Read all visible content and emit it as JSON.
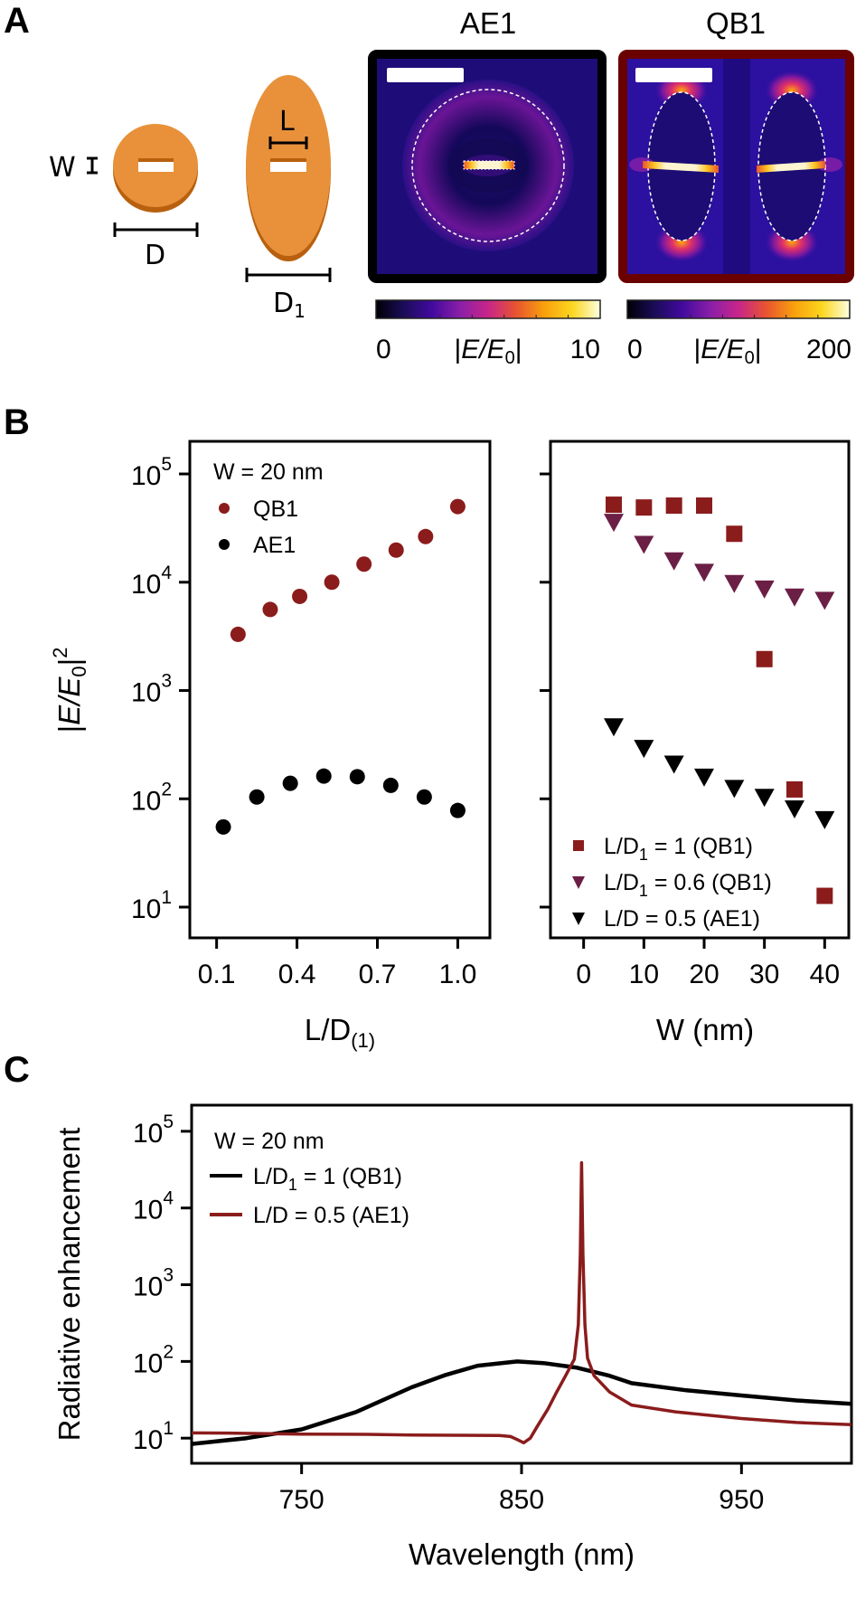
{
  "panels": {
    "a": "A",
    "b": "B",
    "c": "C"
  },
  "schematic": {
    "disk_color": "#e8913a",
    "disk_edge_color": "#b8600e",
    "labels": {
      "w": "W",
      "d": "D",
      "l": "L",
      "d1_main": "D",
      "d1_sub": "1"
    }
  },
  "field_maps": [
    {
      "title": "AE1",
      "frame_color": "#000000",
      "colorbar": {
        "min": "0",
        "label_pre": "|",
        "label_it": "E/E",
        "label_sub": "0",
        "label_post": "|",
        "max": "10"
      }
    },
    {
      "title": "QB1",
      "frame_color": "#6a0000",
      "colorbar": {
        "min": "0",
        "label_pre": "|",
        "label_it": "E/E",
        "label_sub": "0",
        "label_post": "|",
        "max": "200"
      }
    }
  ],
  "colormap": [
    "#000004",
    "#1b0c5a",
    "#420a9e",
    "#8a1fa8",
    "#c8258a",
    "#e85430",
    "#f9a00c",
    "#fcd61f",
    "#fcffe0"
  ],
  "chart_data": [
    {
      "type": "scatter",
      "xlabel": {
        "main": "L/D",
        "sub": "(1)"
      },
      "ylabel": {
        "pre": "|",
        "it": "E/E",
        "sub": "0",
        "post": "|",
        "sup": "2"
      },
      "yscale": "log",
      "ylim": [
        5.2,
        200000
      ],
      "xlim": [
        0.0,
        1.12
      ],
      "xticks": [
        0.1,
        0.4,
        0.7,
        1.0
      ],
      "xticklabels": [
        "0.1",
        "0.4",
        "0.7",
        "1.0"
      ],
      "yticks": [
        10,
        100,
        1000,
        10000,
        100000
      ],
      "yticklabels": [
        {
          "base": "10",
          "exp": "1"
        },
        {
          "base": "10",
          "exp": "2"
        },
        {
          "base": "10",
          "exp": "3"
        },
        {
          "base": "10",
          "exp": "4"
        },
        {
          "base": "10",
          "exp": "5"
        }
      ],
      "legend_title": "W = 20 nm",
      "legend_position": "top-left",
      "series": [
        {
          "name": "QB1",
          "marker": "circle",
          "color": "#8b1c1c",
          "x": [
            0.18,
            0.3,
            0.41,
            0.53,
            0.65,
            0.77,
            0.88,
            1.0
          ],
          "y": [
            3300,
            5600,
            7400,
            10000,
            14700,
            19800,
            26400,
            50000
          ]
        },
        {
          "name": "AE1",
          "marker": "circle",
          "color": "#000000",
          "x": [
            0.125,
            0.25,
            0.375,
            0.5,
            0.625,
            0.75,
            0.875,
            1.0
          ],
          "y": [
            55,
            104,
            139,
            162,
            160,
            133,
            104,
            78
          ]
        }
      ]
    },
    {
      "type": "scatter",
      "xlabel": {
        "main": "W (nm)"
      },
      "yscale": "log",
      "ylim": [
        5.2,
        200000
      ],
      "xlim": [
        -5.5,
        44
      ],
      "xticks": [
        0,
        10,
        20,
        30,
        40
      ],
      "xticklabels": [
        "0",
        "10",
        "20",
        "30",
        "40"
      ],
      "yticks": [
        10,
        100,
        1000,
        10000,
        100000
      ],
      "legend_position": "bottom-left",
      "series": [
        {
          "name": {
            "main": "L/D",
            "sub": "1",
            "rest": " = 1 (QB1)"
          },
          "marker": "square",
          "color": "#8b1c1c",
          "x": [
            5,
            10,
            15,
            20,
            25,
            30,
            35,
            40
          ],
          "y": [
            52000,
            49000,
            51000,
            51000,
            28000,
            1950,
            122,
            12.7
          ]
        },
        {
          "name": {
            "main": "L/D",
            "sub": "1",
            "rest": " = 0.6 (QB1)"
          },
          "marker": "triangle-down",
          "color": "#6b1f45",
          "x": [
            5,
            10,
            15,
            20,
            25,
            30,
            35,
            40
          ],
          "y": [
            36700,
            23000,
            16200,
            12700,
            10000,
            8900,
            7500,
            7000
          ]
        },
        {
          "name": {
            "main": "L/D",
            "sub": "",
            "rest": " = 0.5 (AE1)"
          },
          "marker": "triangle-down",
          "color": "#000000",
          "x": [
            5,
            10,
            15,
            20,
            25,
            30,
            35,
            40
          ],
          "y": [
            475,
            300,
            215,
            163,
            128,
            106,
            83,
            66
          ]
        }
      ]
    },
    {
      "type": "line",
      "xlabel": {
        "main": "Wavelength (nm)"
      },
      "ylabel": {
        "text": "Radiative enhancement"
      },
      "yscale": "log",
      "xlim": [
        700,
        1000
      ],
      "ylim": [
        4.7,
        219000
      ],
      "xticks": [
        750,
        850,
        950
      ],
      "xticklabels": [
        "750",
        "850",
        "950"
      ],
      "yticks": [
        10,
        100,
        1000,
        10000,
        100000
      ],
      "yticklabels": [
        {
          "base": "10",
          "exp": "1"
        },
        {
          "base": "10",
          "exp": "2"
        },
        {
          "base": "10",
          "exp": "3"
        },
        {
          "base": "10",
          "exp": "4"
        },
        {
          "base": "10",
          "exp": "5"
        }
      ],
      "legend_title": "W = 20 nm",
      "legend_position": "top-left",
      "series": [
        {
          "name": {
            "main": "L/D",
            "sub": "1",
            "rest": " = 1 (QB1)"
          },
          "color": "#000000",
          "x": [
            700,
            725,
            750,
            775,
            800,
            815,
            830,
            848,
            860,
            875,
            890,
            900,
            925,
            950,
            975,
            1000
          ],
          "y": [
            8.4,
            10,
            13,
            22,
            46,
            66,
            88,
            100,
            95,
            83,
            65,
            52,
            42,
            36,
            31,
            28
          ]
        },
        {
          "name": {
            "main": "L/D",
            "sub": "",
            "rest": " = 0.5 (AE1)"
          },
          "color": "#8b1c1c",
          "x": [
            700,
            720,
            750,
            780,
            800,
            820,
            840,
            845,
            848,
            851,
            854,
            857,
            862,
            866,
            870,
            874,
            875.8,
            876.7,
            877.3,
            877.9,
            878.8,
            880,
            883,
            890,
            900,
            920,
            950,
            975,
            1000
          ],
          "y": [
            11.7,
            11.6,
            11.3,
            11.2,
            11.0,
            10.9,
            10.8,
            10.5,
            9.6,
            8.7,
            10,
            14,
            24,
            40,
            65,
            107,
            300,
            2500,
            39000,
            2500,
            300,
            110,
            65,
            40,
            27,
            22,
            18,
            16,
            15
          ]
        }
      ]
    }
  ]
}
